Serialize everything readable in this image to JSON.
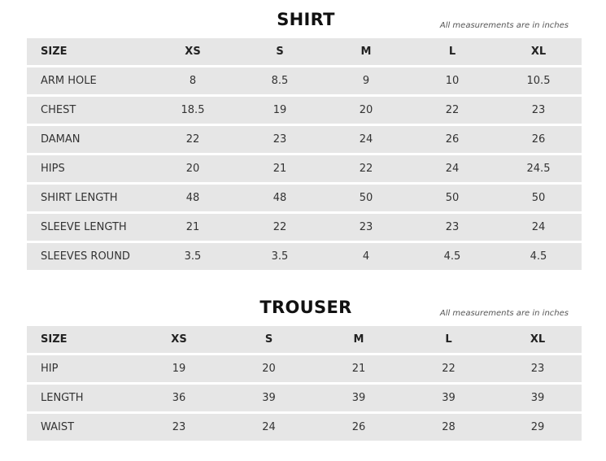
{
  "shirt": {
    "title": "SHIRT",
    "note": "All measurements are in inches",
    "headers": [
      "SIZE",
      "XS",
      "S",
      "M",
      "L",
      "XL"
    ],
    "rows": [
      [
        "ARM HOLE",
        "8",
        "8.5",
        "9",
        "10",
        "10.5"
      ],
      [
        "CHEST",
        "18.5",
        "19",
        "20",
        "22",
        "23"
      ],
      [
        "DAMAN",
        "22",
        "23",
        "24",
        "26",
        "26"
      ],
      [
        "HIPS",
        "20",
        "21",
        "22",
        "24",
        "24.5"
      ],
      [
        "SHIRT LENGTH",
        "48",
        "48",
        "50",
        "50",
        "50"
      ],
      [
        "SLEEVE LENGTH",
        "21",
        "22",
        "23",
        "23",
        "24"
      ],
      [
        "SLEEVES ROUND",
        "3.5",
        "3.5",
        "4",
        "4.5",
        "4.5"
      ]
    ]
  },
  "trouser": {
    "title": "TROUSER",
    "note": "All measurements are in inches",
    "headers": [
      "SIZE",
      "XS",
      "S",
      "M",
      "L",
      "XL"
    ],
    "rows": [
      [
        "HIP",
        "19",
        "20",
        "21",
        "22",
        "23"
      ],
      [
        "LENGTH",
        "36",
        "39",
        "39",
        "39",
        "39"
      ],
      [
        "WAIST",
        "23",
        "24",
        "26",
        "28",
        "29"
      ]
    ]
  }
}
